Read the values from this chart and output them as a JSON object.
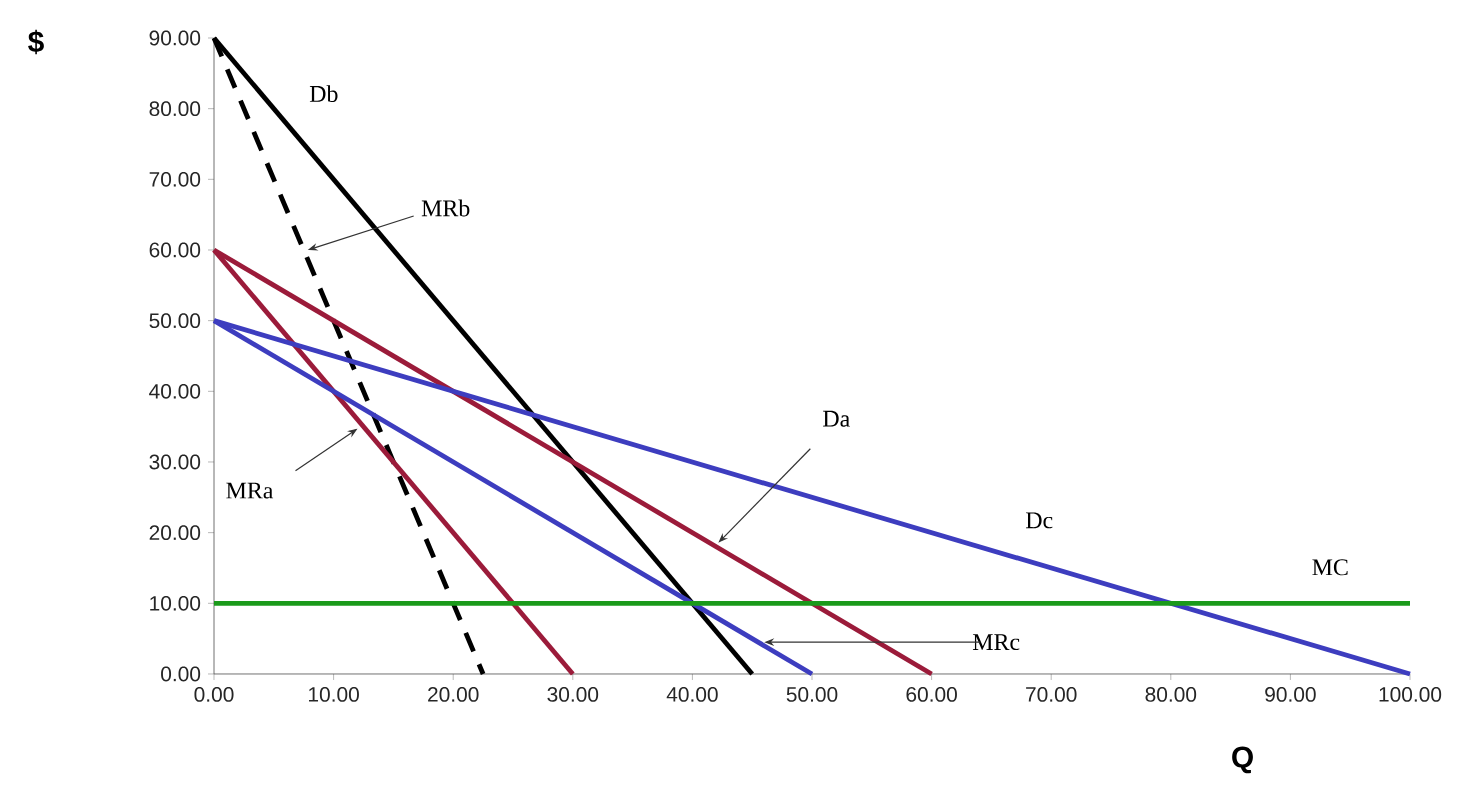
{
  "chart_data": {
    "type": "line",
    "xlabel": "Q",
    "ylabel": "$",
    "xlim": [
      0,
      100
    ],
    "ylim": [
      0,
      90
    ],
    "xticks": [
      {
        "value": 0,
        "label": "0.00"
      },
      {
        "value": 10,
        "label": "10.00"
      },
      {
        "value": 20,
        "label": "20.00"
      },
      {
        "value": 30,
        "label": "30.00"
      },
      {
        "value": 40,
        "label": "40.00"
      },
      {
        "value": 50,
        "label": "50.00"
      },
      {
        "value": 60,
        "label": "60.00"
      },
      {
        "value": 70,
        "label": "70.00"
      },
      {
        "value": 80,
        "label": "80.00"
      },
      {
        "value": 90,
        "label": "90.00"
      },
      {
        "value": 100,
        "label": "100.00"
      }
    ],
    "yticks": [
      {
        "value": 0,
        "label": "0.00"
      },
      {
        "value": 10,
        "label": "10.00"
      },
      {
        "value": 20,
        "label": "20.00"
      },
      {
        "value": 30,
        "label": "30.00"
      },
      {
        "value": 40,
        "label": "40.00"
      },
      {
        "value": 50,
        "label": "50.00"
      },
      {
        "value": 60,
        "label": "60.00"
      },
      {
        "value": 70,
        "label": "70.00"
      },
      {
        "value": 80,
        "label": "80.00"
      },
      {
        "value": 90,
        "label": "90.00"
      }
    ],
    "series": [
      {
        "color": "#000000",
        "x": [
          0,
          45
        ],
        "values": [
          90,
          0
        ]
      },
      {
        "color": "#000000",
        "x": [
          0,
          22.5
        ],
        "values": [
          90,
          0
        ],
        "line_style": "dashed"
      },
      {
        "color": "#9b1b3a",
        "x": [
          0,
          60
        ],
        "values": [
          60,
          0
        ]
      },
      {
        "color": "#9b1b3a",
        "x": [
          0,
          30
        ],
        "values": [
          60,
          0
        ]
      },
      {
        "color": "#3d3dbf",
        "x": [
          0,
          100
        ],
        "values": [
          50,
          0
        ]
      },
      {
        "color": "#3d3dbf",
        "x": [
          0,
          50
        ],
        "values": [
          50,
          0
        ]
      },
      {
        "color": "#1a9a1a",
        "x": [
          0,
          100
        ],
        "values": [
          10,
          10
        ]
      }
    ],
    "annotations": [
      {
        "text": "Db",
        "x": 4.5,
        "y": 81
      },
      {
        "text": "MRb",
        "x": 7.5,
        "y": 60
      },
      {
        "text": "Da",
        "x": 42,
        "y": 18
      },
      {
        "text": "MRa",
        "x": 12.5,
        "y": 35
      },
      {
        "text": "Dc",
        "x": 69,
        "y": 15.5
      },
      {
        "text": "MRc",
        "x": 45.5,
        "y": 4.5
      },
      {
        "text": "MC",
        "x": 93,
        "y": 10
      }
    ]
  }
}
